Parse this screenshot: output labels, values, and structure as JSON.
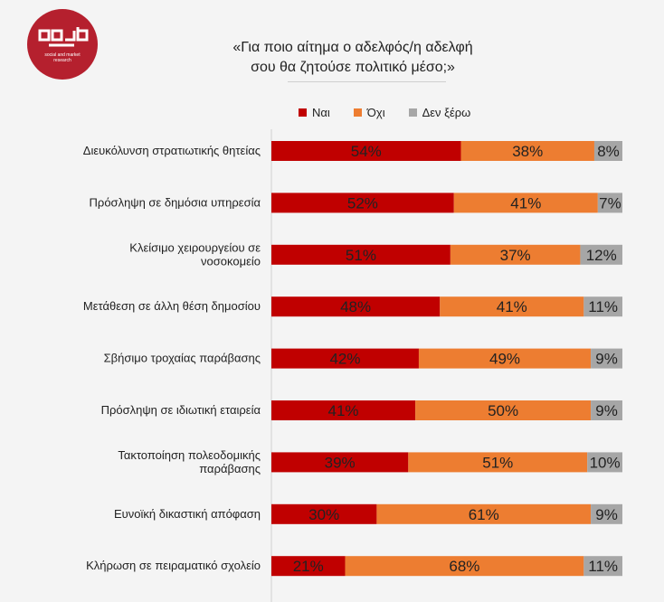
{
  "logo": {
    "subtitle_lines": [
      "social and market",
      "research"
    ],
    "color": "#b5202e"
  },
  "title_lines": [
    "«Για ποιο αίτημα ο αδελφός/η αδελφή",
    "σου θα ζητούσε πολιτικό μέσο;»"
  ],
  "colors": {
    "yes": "#c00000",
    "no": "#ed7d31",
    "dont_know": "#a6a6a6"
  },
  "chart_data": {
    "type": "bar",
    "orientation": "horizontal",
    "stacked": true,
    "xlim": [
      0,
      100
    ],
    "legend_position": "top",
    "grid": false,
    "categories": [
      "Διευκόλυνση στρατιωτικής θητείας",
      "Πρόσληψη σε δημόσια υπηρεσία",
      "Κλείσιμο χειρουργείου σε νοσοκομείο",
      "Μετάθεση σε άλλη θέση δημοσίου",
      "Σβήσιμο τροχαίας παράβασης",
      "Πρόσληψη σε ιδιωτική εταιρεία",
      "Τακτοποίηση πολεοδομικής παράβασης",
      "Ευνοϊκή δικαστική απόφαση",
      "Κλήρωση σε πειραματικό σχολείο"
    ],
    "category_label_lines": [
      [
        "Διευκόλυνση στρατιωτικής θητείας"
      ],
      [
        "Πρόσληψη σε δημόσια υπηρεσία"
      ],
      [
        "Κλείσιμο χειρουργείου σε",
        "νοσοκομείο"
      ],
      [
        "Μετάθεση σε άλλη θέση δημοσίου"
      ],
      [
        "Σβήσιμο τροχαίας παράβασης"
      ],
      [
        "Πρόσληψη σε ιδιωτική εταιρεία"
      ],
      [
        "Τακτοποίηση πολεοδομικής",
        "παράβασης"
      ],
      [
        "Ευνοϊκή δικαστική απόφαση"
      ],
      [
        "Κλήρωση σε πειραματικό σχολείο"
      ]
    ],
    "series": [
      {
        "name": "Ναι",
        "color": "#c00000",
        "values": [
          54,
          52,
          51,
          48,
          42,
          41,
          39,
          30,
          21
        ]
      },
      {
        "name": "Όχι",
        "color": "#ed7d31",
        "values": [
          38,
          41,
          37,
          41,
          49,
          50,
          51,
          61,
          68
        ]
      },
      {
        "name": "Δεν ξέρω",
        "color": "#a6a6a6",
        "values": [
          8,
          7,
          12,
          11,
          9,
          9,
          10,
          9,
          11
        ]
      }
    ],
    "value_suffix": "%"
  }
}
